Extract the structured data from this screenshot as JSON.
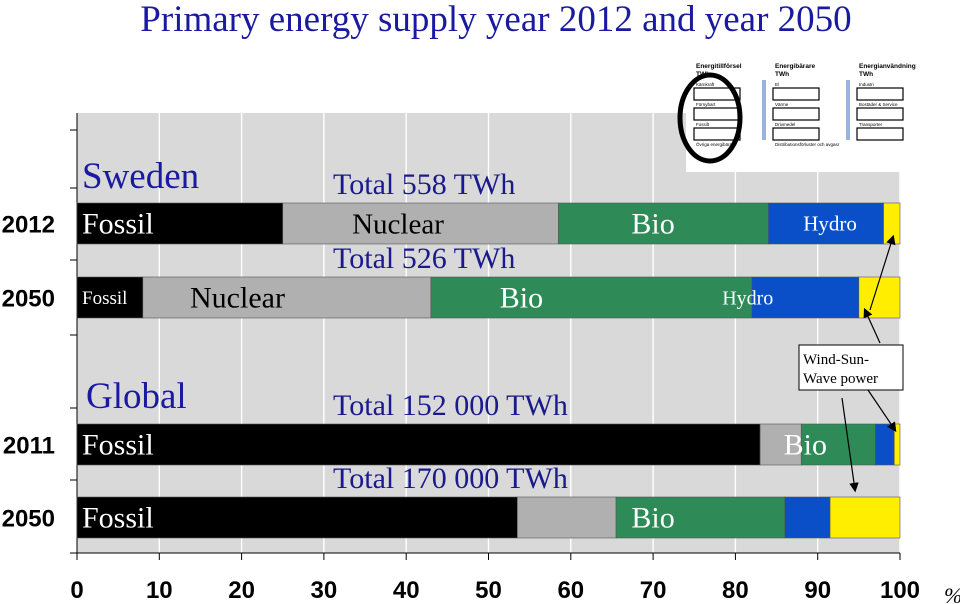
{
  "chart_data": {
    "type": "bar",
    "orientation": "horizontal-stacked-percent",
    "title": "Primary energy supply year 2012 and year 2050",
    "x_axis": {
      "ticks": [
        "0",
        "10",
        "20",
        "30",
        "40",
        "50",
        "60",
        "70",
        "80",
        "90",
        "100"
      ],
      "range": [
        0,
        100
      ],
      "unit_label": "%"
    },
    "grid": true,
    "categories": [
      "Fossil",
      "Nuclear",
      "Bio",
      "Hydro",
      "Wind-Sun-Wave power"
    ],
    "colors": {
      "Fossil": "#000000",
      "Nuclear": "#b0b0b0",
      "Bio": "#2e8b57",
      "Hydro": "#0a4fc8",
      "Wind-Sun-Wave power": "#ffee00"
    },
    "groups": [
      {
        "label": "Sweden"
      },
      {
        "label": "Global"
      }
    ],
    "rows": [
      {
        "group": "Sweden",
        "year": "2012",
        "total_label": "Total  558 TWh",
        "values": [
          25,
          33.5,
          25.5,
          14,
          2
        ],
        "segment_labels": [
          "Fossil",
          "Nuclear",
          "Bio",
          "Hydro",
          ""
        ]
      },
      {
        "group": "Sweden",
        "year": "2050",
        "total_label": "Total  526 TWh",
        "values": [
          8,
          35,
          39,
          13,
          5
        ],
        "segment_labels": [
          "Fossil",
          "Nuclear",
          "Bio",
          "Hydro",
          ""
        ]
      },
      {
        "group": "Global",
        "year": "2011",
        "total_label": "Total 152 000 TWh",
        "values": [
          83,
          5,
          9,
          2.3,
          0.7
        ],
        "segment_labels": [
          "Fossil",
          "",
          "Bio",
          "",
          ""
        ]
      },
      {
        "group": "Global",
        "year": "2050",
        "total_label": "Total 170 000 TWh",
        "values": [
          53.5,
          12,
          20.5,
          5.5,
          8.5
        ],
        "segment_labels": [
          "Fossil",
          "",
          "Bio",
          "",
          ""
        ]
      }
    ],
    "annotation": {
      "text_lines": [
        "Wind-Sun-",
        "Wave power"
      ]
    }
  },
  "inset": {
    "columns": [
      {
        "title_lines": [
          "Energitillförsel",
          "TWh"
        ],
        "items": [
          "Kärnkraft",
          "Förnybart",
          "Fossilt",
          "Övriga energibärare"
        ]
      },
      {
        "title_lines": [
          "Energibärare",
          "TWh"
        ],
        "items": [
          "El",
          "Värme",
          "Drivmedel",
          "Distributionsförluster och avgasr"
        ]
      },
      {
        "title_lines": [
          "Energianvändning",
          "TWh"
        ],
        "items": [
          "Industri",
          "Bostäder & Service",
          "Transporter"
        ]
      }
    ]
  }
}
